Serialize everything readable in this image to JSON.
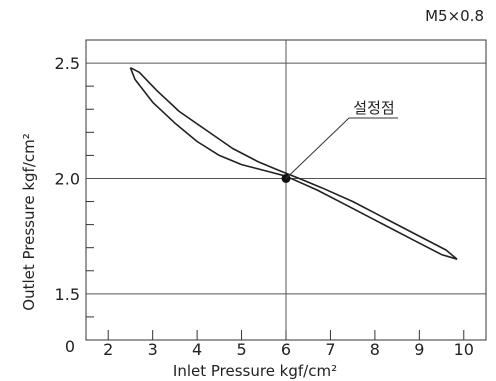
{
  "chart_data": {
    "type": "line",
    "corner_label": "M5×0.8",
    "xlabel": "Inlet Pressure kgf/cm²",
    "ylabel": "Outlet Pressure kgf/cm²",
    "xlim": [
      1.5,
      10.5
    ],
    "ylim": [
      1.3,
      2.6
    ],
    "x_ticks": [
      "2",
      "3",
      "4",
      "5",
      "6",
      "7",
      "8",
      "9",
      "10"
    ],
    "y_ticks": [
      "2.5",
      "2.0",
      "1.5"
    ],
    "y_origin_label": "0",
    "grid": true,
    "series": [
      {
        "points": [
          [
            2.5,
            2.48
          ],
          [
            2.7,
            2.46
          ],
          [
            3.1,
            2.38
          ],
          [
            3.6,
            2.29
          ],
          [
            4.2,
            2.21
          ],
          [
            4.8,
            2.13
          ],
          [
            5.4,
            2.07
          ],
          [
            5.9,
            2.03
          ],
          [
            6.3,
            2.0
          ],
          [
            6.8,
            1.96
          ],
          [
            7.5,
            1.9
          ],
          [
            8.3,
            1.82
          ],
          [
            9.1,
            1.74
          ],
          [
            9.6,
            1.69
          ],
          [
            9.85,
            1.65
          ]
        ]
      },
      {
        "points": [
          [
            9.85,
            1.65
          ],
          [
            9.5,
            1.67
          ],
          [
            8.9,
            1.73
          ],
          [
            8.1,
            1.81
          ],
          [
            7.3,
            1.89
          ],
          [
            6.7,
            1.95
          ],
          [
            6.0,
            2.01
          ],
          [
            5.6,
            2.03
          ],
          [
            5.0,
            2.06
          ],
          [
            4.5,
            2.1
          ],
          [
            4.0,
            2.16
          ],
          [
            3.5,
            2.24
          ],
          [
            3.0,
            2.33
          ],
          [
            2.6,
            2.43
          ],
          [
            2.5,
            2.48
          ]
        ]
      }
    ],
    "annotation": {
      "text": "설정점",
      "x": 6.0,
      "y": 2.0
    }
  }
}
